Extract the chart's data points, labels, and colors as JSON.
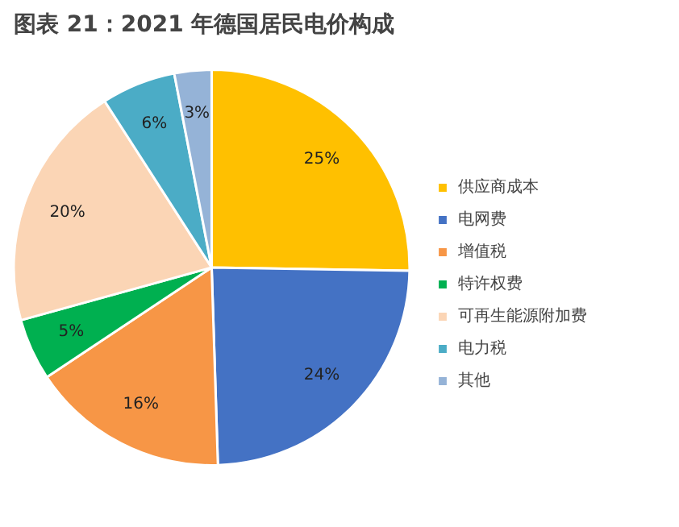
{
  "chart_data": {
    "type": "pie",
    "title": "图表 21：2021 年德国居民电价构成",
    "categories": [
      "供应商成本",
      "电网费",
      "增值税",
      "特许权费",
      "可再生能源附加费",
      "电力税",
      "其他"
    ],
    "values": [
      25,
      24,
      16,
      5,
      20,
      6,
      3
    ],
    "colors": [
      "#ffc000",
      "#4472c4",
      "#f79646",
      "#00b050",
      "#fbd5b5",
      "#4bacc6",
      "#95b3d7"
    ],
    "value_labels": [
      "25%",
      "24%",
      "16%",
      "5%",
      "20%",
      "6%",
      "3%"
    ],
    "legend": "right"
  }
}
